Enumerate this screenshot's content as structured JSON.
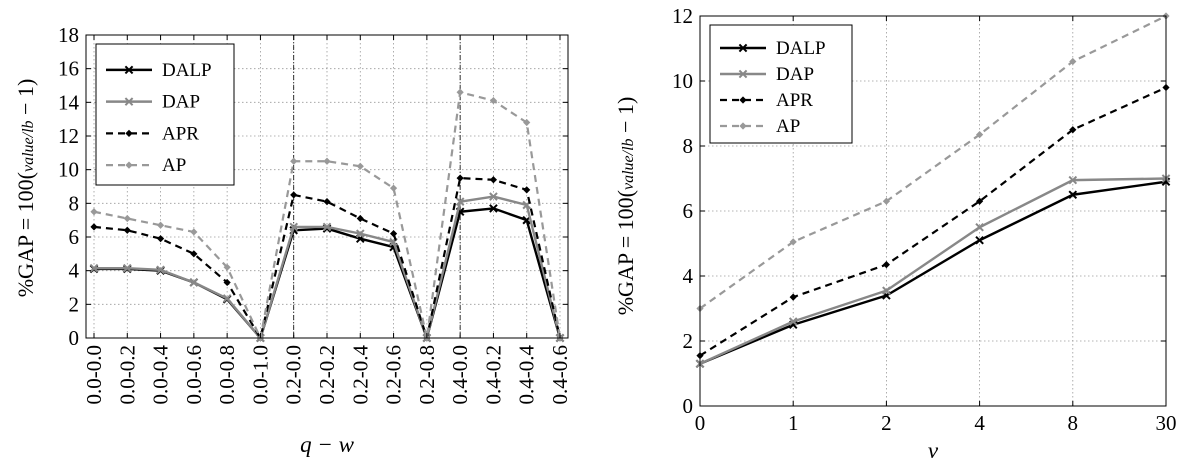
{
  "charts": [
    {
      "type": "line",
      "categories": [
        "0.0-0.0",
        "0.0-0.2",
        "0.0-0.4",
        "0.0-0.6",
        "0.0-0.8",
        "0.0-1.0",
        "0.2-0.0",
        "0.2-0.2",
        "0.2-0.4",
        "0.2-0.6",
        "0.2-0.8",
        "0.4-0.0",
        "0.4-0.2",
        "0.4-0.4",
        "0.4-0.6"
      ],
      "xlabel": "q − w",
      "ylabel": "%GAP = 100(value/lb − 1)",
      "ylim": [
        0,
        18
      ],
      "yticks": [
        "0",
        "2",
        "4",
        "6",
        "8",
        "10",
        "12",
        "14",
        "16",
        "18"
      ],
      "grid": true,
      "legend_position": "top-left",
      "group_separators_after": [
        "0.0-1.0",
        "0.2-0.8"
      ],
      "series": [
        {
          "name": "DALP",
          "color": "#000000",
          "dashed": false,
          "width": 2.4,
          "marker": "x",
          "values": [
            4.1,
            4.1,
            4.0,
            3.3,
            2.3,
            0.0,
            6.4,
            6.5,
            5.9,
            5.4,
            0.0,
            7.5,
            7.7,
            7.0,
            0.0
          ]
        },
        {
          "name": "DAP",
          "color": "#888888",
          "dashed": false,
          "width": 2.4,
          "marker": "x",
          "values": [
            4.15,
            4.15,
            4.05,
            3.3,
            2.35,
            0.0,
            6.6,
            6.6,
            6.2,
            5.7,
            0.0,
            8.1,
            8.4,
            7.9,
            0.0
          ]
        },
        {
          "name": "APR",
          "color": "#000000",
          "dashed": true,
          "width": 2.2,
          "marker": "diamond",
          "values": [
            6.6,
            6.4,
            5.9,
            5.0,
            3.3,
            0.0,
            8.5,
            8.1,
            7.1,
            6.2,
            0.0,
            9.5,
            9.4,
            8.8,
            0.0
          ]
        },
        {
          "name": "AP",
          "color": "#999999",
          "dashed": true,
          "width": 2.2,
          "marker": "diamond",
          "values": [
            7.5,
            7.1,
            6.7,
            6.3,
            4.2,
            0.0,
            10.5,
            10.5,
            10.2,
            8.9,
            0.0,
            14.6,
            14.1,
            12.8,
            0.0
          ]
        }
      ]
    },
    {
      "type": "line",
      "categories": [
        "0",
        "1",
        "2",
        "4",
        "8",
        "30"
      ],
      "xlabel": "v",
      "ylabel": "%GAP = 100(value/lb − 1)",
      "ylim": [
        0,
        12
      ],
      "yticks": [
        "0",
        "2",
        "4",
        "6",
        "8",
        "10",
        "12"
      ],
      "grid": true,
      "legend_position": "top-left",
      "series": [
        {
          "name": "DALP",
          "color": "#000000",
          "dashed": false,
          "width": 2.4,
          "marker": "x",
          "values": [
            1.3,
            2.5,
            3.4,
            5.1,
            6.5,
            6.9
          ]
        },
        {
          "name": "DAP",
          "color": "#888888",
          "dashed": false,
          "width": 2.4,
          "marker": "x",
          "values": [
            1.3,
            2.6,
            3.55,
            5.5,
            6.95,
            7.0
          ]
        },
        {
          "name": "APR",
          "color": "#000000",
          "dashed": true,
          "width": 2.2,
          "marker": "diamond",
          "values": [
            1.55,
            3.35,
            4.35,
            6.3,
            8.5,
            9.8
          ]
        },
        {
          "name": "AP",
          "color": "#999999",
          "dashed": true,
          "width": 2.2,
          "marker": "diamond",
          "values": [
            3.0,
            5.05,
            6.3,
            8.35,
            10.6,
            12.0
          ]
        }
      ]
    }
  ]
}
